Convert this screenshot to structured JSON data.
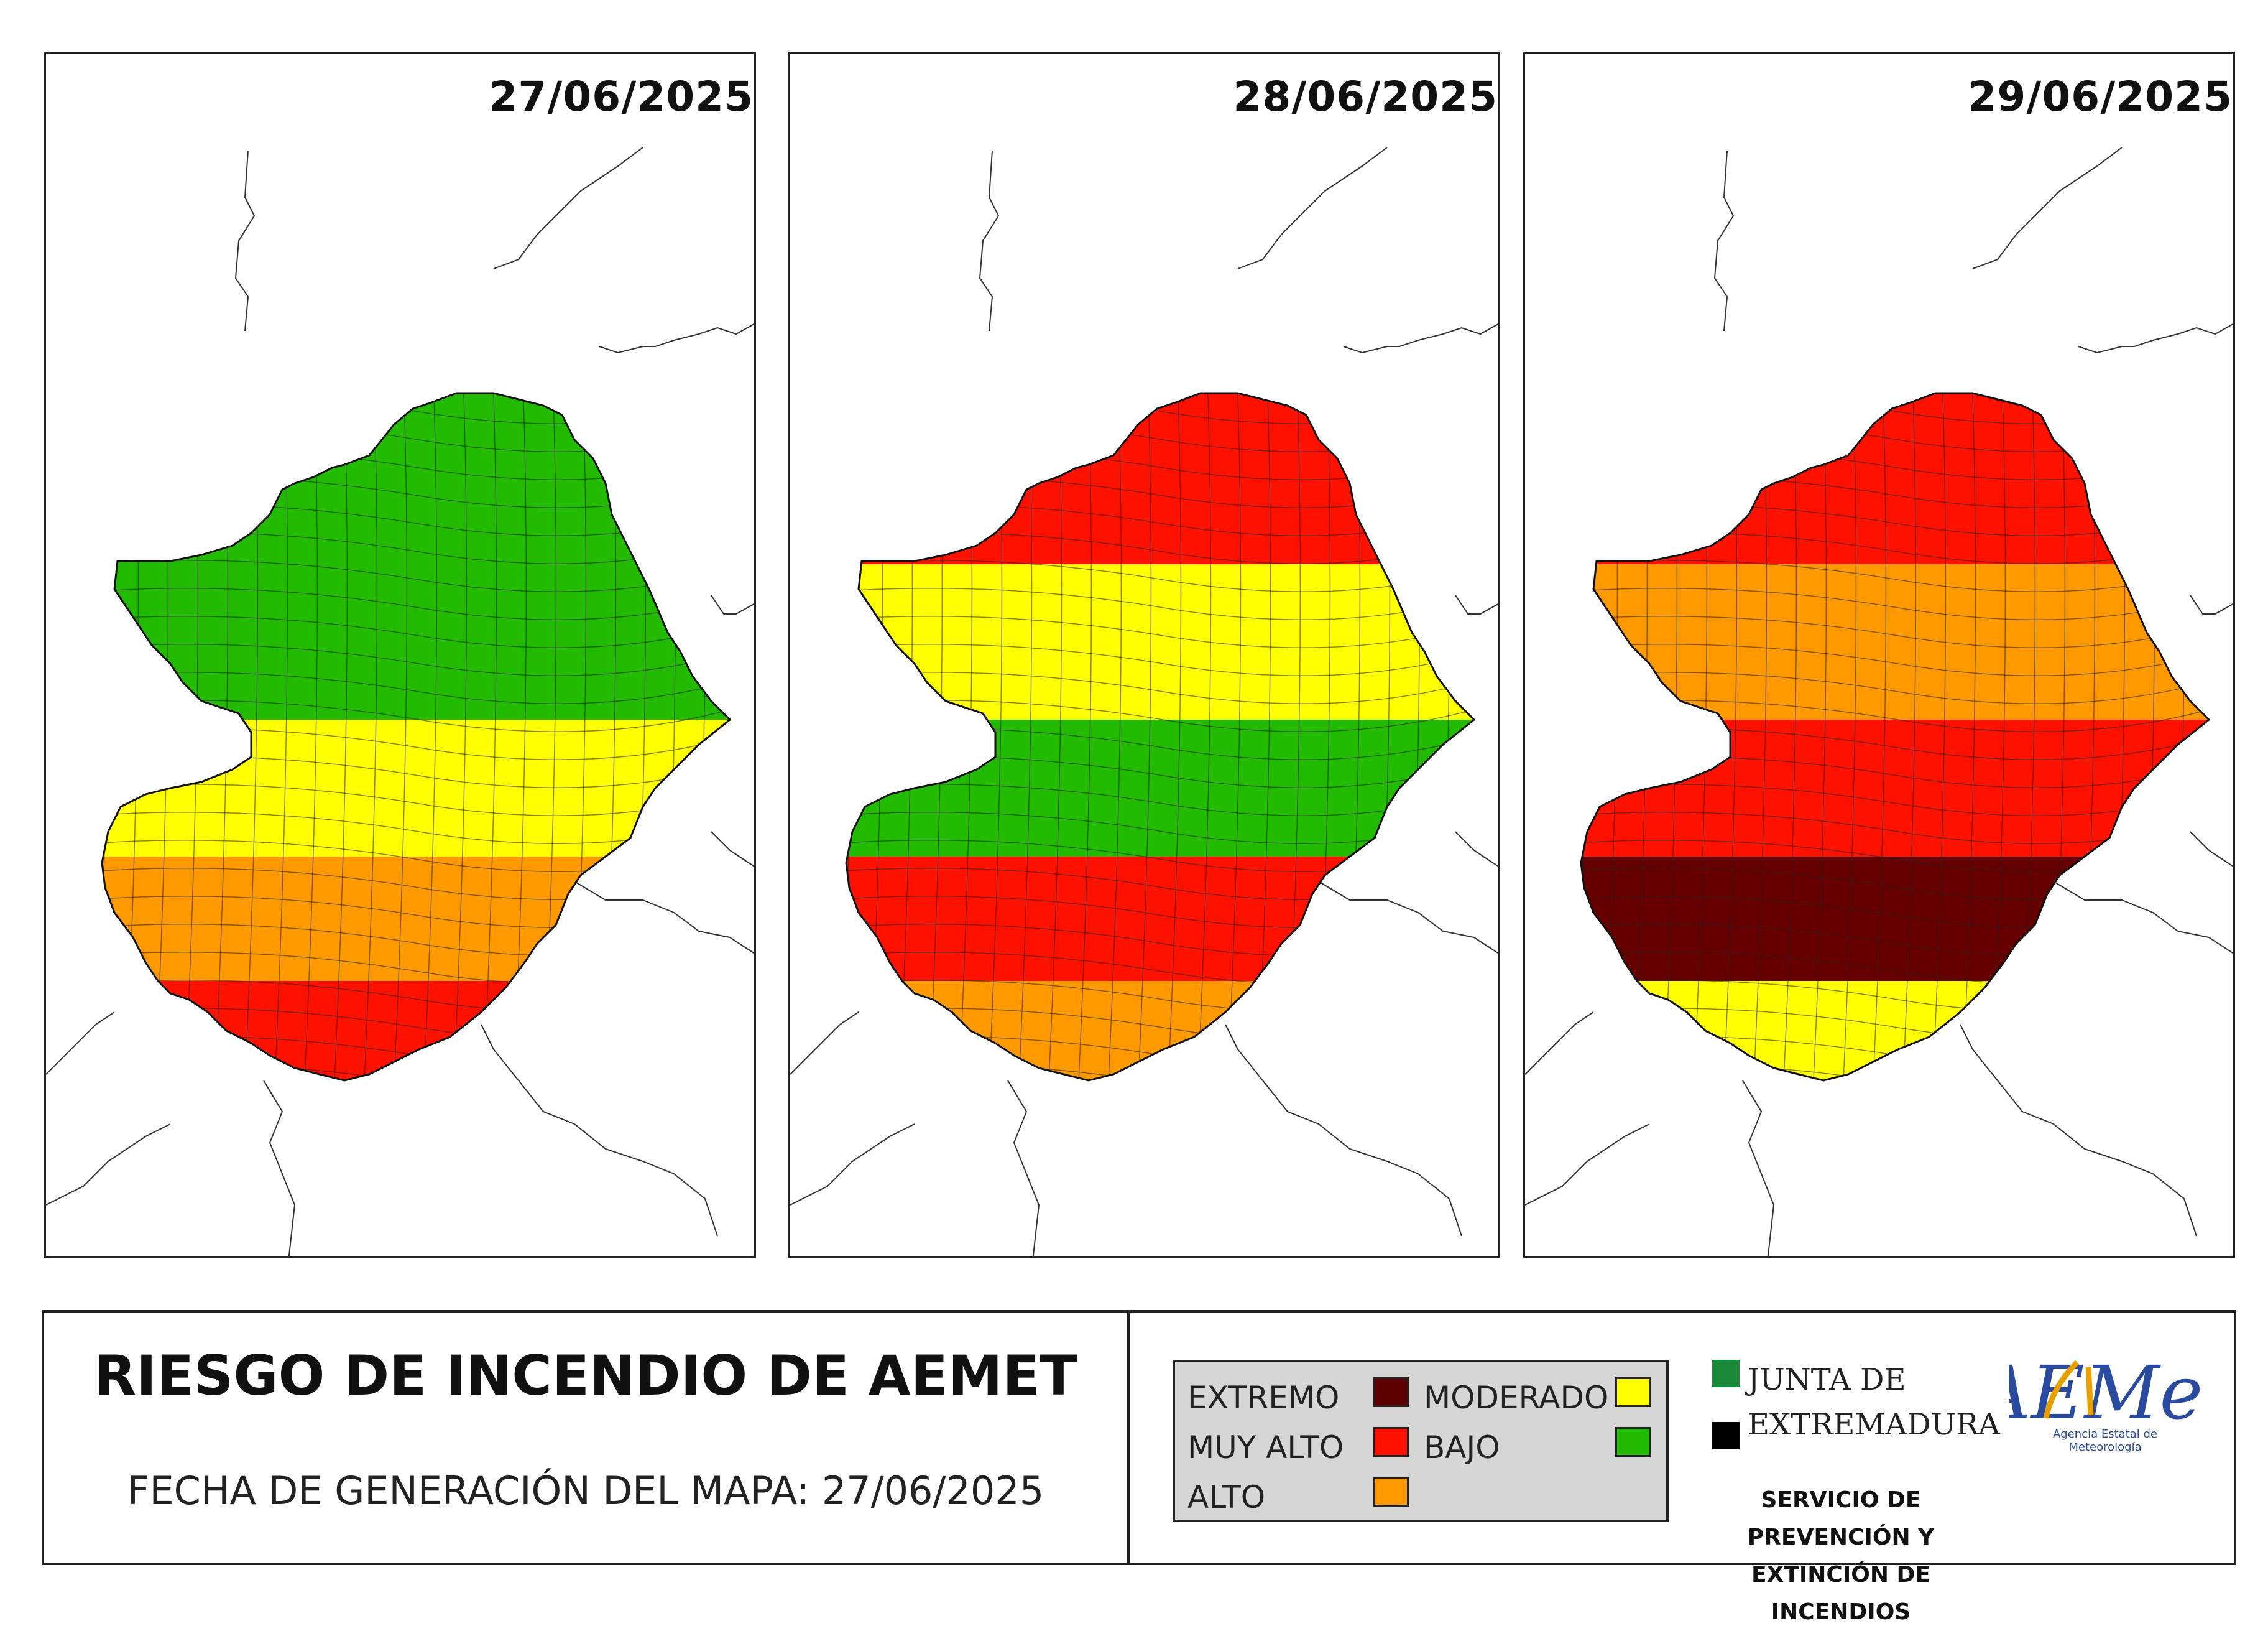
{
  "maps": [
    {
      "date": "27/06/2025",
      "palette": [
        "#22bb00",
        "#22bb00",
        "#22bb00",
        "#ffff00",
        "#ff9900",
        "#ff1100"
      ]
    },
    {
      "date": "28/06/2025",
      "palette": [
        "#ff9900",
        "#ff1100",
        "#ffff00",
        "#22bb00",
        "#ff1100",
        "#ff9900"
      ]
    },
    {
      "date": "29/06/2025",
      "palette": [
        "#660000",
        "#ff1100",
        "#ff9900",
        "#ff1100",
        "#660000",
        "#ffff00"
      ]
    }
  ],
  "footer": {
    "title": "RIESGO DE INCENDIO DE AEMET",
    "generation_label": "FECHA DE GENERACIÓN DEL MAPA: 27/06/2025"
  },
  "legend": {
    "items": [
      {
        "label": "EXTREMO",
        "color": "#5c0000"
      },
      {
        "label": "MUY ALTO",
        "color": "#ff1100"
      },
      {
        "label": "ALTO",
        "color": "#ff9900"
      },
      {
        "label": "MODERADO",
        "color": "#ffff00"
      },
      {
        "label": "BAJO",
        "color": "#22bb00"
      }
    ]
  },
  "junta": {
    "line1": "JUNTA DE",
    "line2": "EXTREMADURA",
    "green": "#1a8a3a",
    "black": "#000000"
  },
  "service": {
    "line1": "SERVICIO DE PREVENCIÓN Y",
    "line2": "EXTINCIÓN DE INCENDIOS"
  },
  "aemet": {
    "logo_text": "AEMet",
    "subtitle": "Agencia Estatal de Meteorología"
  }
}
